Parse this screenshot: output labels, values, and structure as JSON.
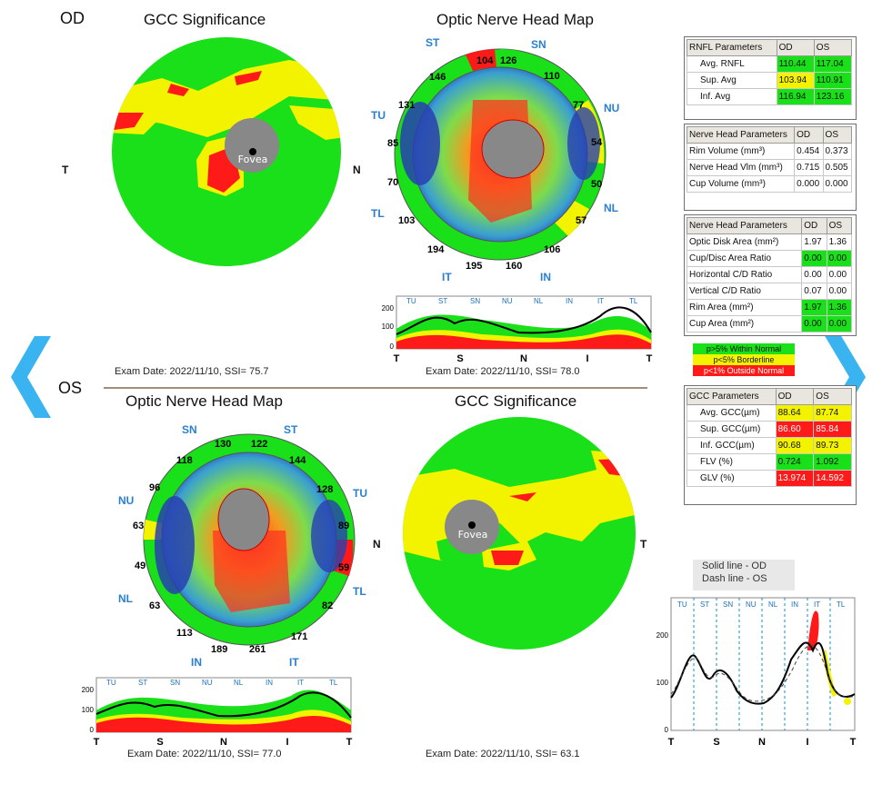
{
  "od": {
    "eye_label": "OD",
    "gcc_title": "GCC Significance",
    "onh_title": "Optic Nerve Head Map",
    "gcc_exam": "Exam Date: 2022/11/10, SSI= 75.7",
    "onh_exam": "Exam Date: 2022/11/10, SSI= 78.0",
    "side_left": "T",
    "side_right": "N",
    "fovea": "Fovea",
    "sector_values": {
      "ST1": "104",
      "SN1": "126",
      "SN2": "110",
      "NU2": "77",
      "NU1": "54",
      "NL1": "50",
      "NL2": "57",
      "IN2": "106",
      "IN1": "160",
      "IT1": "195",
      "IT2": "194",
      "TL2": "103",
      "TL1": "70",
      "TU1": "85",
      "TU2": "131",
      "ST2": "146"
    },
    "quadrants": {
      "ST": "ST",
      "SN": "SN",
      "NU": "NU",
      "NL": "NL",
      "IN": "IN",
      "IT": "IT",
      "TL": "TL",
      "TU": "TU"
    }
  },
  "os": {
    "eye_label": "OS",
    "gcc_title": "GCC Significance",
    "onh_title": "Optic Nerve Head Map",
    "gcc_exam": "Exam Date: 2022/11/10, SSI= 63.1",
    "onh_exam": "Exam Date: 2022/11/10, SSI= 77.0",
    "side_left": "N",
    "side_right": "T",
    "fovea": "Fovea",
    "sector_values": {
      "SN1": "130",
      "ST1": "122",
      "ST2": "144",
      "TU2": "128",
      "TU1": "89",
      "TL1": "59",
      "TL2": "82",
      "IT2": "171",
      "IT1": "261",
      "IN1": "189",
      "IN2": "113",
      "NL2": "63",
      "NL1": "49",
      "NU1": "63",
      "NU2": "96",
      "SN2": "118"
    },
    "quadrants": {
      "SN": "SN",
      "ST": "ST",
      "TU": "TU",
      "TL": "TL",
      "IT": "IT",
      "IN": "IN",
      "NL": "NL",
      "NU": "NU"
    }
  },
  "rnfl_table": {
    "header": [
      "RNFL Parameters",
      "OD",
      "OS"
    ],
    "rows": [
      [
        "Avg. RNFL",
        "110.44",
        "117.04"
      ],
      [
        "Sup. Avg",
        "103.94",
        "110.91"
      ],
      [
        "Inf. Avg",
        "116.94",
        "123.16"
      ]
    ],
    "colors": [
      [
        "g",
        "g"
      ],
      [
        "y",
        "g"
      ],
      [
        "g",
        "g"
      ]
    ]
  },
  "nerve_table1": {
    "header": [
      "Nerve Head Parameters",
      "OD",
      "OS"
    ],
    "rows": [
      [
        "Rim Volume (mm³)",
        "0.454",
        "0.373"
      ],
      [
        "Nerve Head Vlm (mm³)",
        "0.715",
        "0.505"
      ],
      [
        "Cup Volume (mm³)",
        "0.000",
        "0.000"
      ]
    ]
  },
  "nerve_table2": {
    "header": [
      "Nerve Head Parameters",
      "OD",
      "OS"
    ],
    "rows": [
      [
        "Optic Disk Area (mm²)",
        "1.97",
        "1.36"
      ],
      [
        "Cup/Disc Area Ratio",
        "0.00",
        "0.00"
      ],
      [
        "Horizontal C/D Ratio",
        "0.00",
        "0.00"
      ],
      [
        "Vertical C/D Ratio",
        "0.07",
        "0.00"
      ],
      [
        "Rim Area (mm²)",
        "1.97",
        "1.36"
      ],
      [
        "Cup Area (mm²)",
        "0.00",
        "0.00"
      ]
    ],
    "colors": [
      [
        "",
        ""
      ],
      [
        "g",
        "g"
      ],
      [
        "",
        ""
      ],
      [
        "",
        ""
      ],
      [
        "g",
        "g"
      ],
      [
        "g",
        "g"
      ]
    ]
  },
  "legend": {
    "items": [
      "p>5% Within Normal",
      "p<5% Borderline",
      "p<1% Outside Normal"
    ]
  },
  "gcc_table": {
    "header": [
      "GCC Parameters",
      "OD",
      "OS"
    ],
    "rows": [
      [
        "Avg. GCC(µm)",
        "88.64",
        "87.74"
      ],
      [
        "Sup. GCC(µm)",
        "86.60",
        "85.84"
      ],
      [
        "Inf. GCC(µm)",
        "90.68",
        "89.73"
      ],
      [
        "FLV (%)",
        "0.724",
        "1.092"
      ],
      [
        "GLV (%)",
        "13.974",
        "14.592"
      ]
    ],
    "colors": [
      [
        "y",
        "y"
      ],
      [
        "r",
        "r"
      ],
      [
        "y",
        "y"
      ],
      [
        "g",
        "g"
      ],
      [
        "r",
        "r"
      ]
    ]
  },
  "tsnit_segments": [
    "TU",
    "ST",
    "SN",
    "NU",
    "NL",
    "IN",
    "IT",
    "TL"
  ],
  "tsnit_axis": [
    "T",
    "S",
    "N",
    "I",
    "T"
  ],
  "tsnit_yticks": [
    "0",
    "100",
    "200"
  ],
  "compare_legend": {
    "solid": "Solid line - OD",
    "dash": "Dash line - OS"
  },
  "colors": {
    "green": "#19e019",
    "yellow": "#f3f300",
    "red": "#ff1a1a",
    "nav": "#39b4f0"
  }
}
